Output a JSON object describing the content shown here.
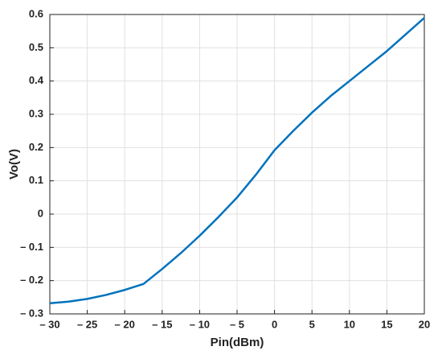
{
  "chart_data": {
    "type": "line",
    "xlabel": "Pin(dBm)",
    "ylabel": "Vo(V)",
    "x": [
      -30,
      -27.5,
      -25,
      -22.5,
      -20,
      -17.5,
      -15,
      -12.5,
      -10,
      -7.5,
      -5,
      -2.5,
      0,
      2.5,
      5,
      7.5,
      10,
      12.5,
      15,
      17.5,
      20
    ],
    "series": [
      {
        "name": "Vo",
        "color": "#0072bd",
        "values": [
          -0.268,
          -0.263,
          -0.255,
          -0.243,
          -0.228,
          -0.21,
          -0.165,
          -0.117,
          -0.065,
          -0.009,
          0.05,
          0.118,
          0.192,
          0.25,
          0.305,
          0.355,
          0.4,
          0.445,
          0.49,
          0.54,
          0.59
        ]
      }
    ],
    "xlim": [
      -30,
      20
    ],
    "ylim": [
      -0.3,
      0.6
    ],
    "xticks": [
      {
        "value": -30,
        "label": "– 30"
      },
      {
        "value": -25,
        "label": "– 25"
      },
      {
        "value": -20,
        "label": "– 20"
      },
      {
        "value": -15,
        "label": "– 15"
      },
      {
        "value": -10,
        "label": "– 10"
      },
      {
        "value": -5,
        "label": "– 5"
      },
      0,
      5,
      10,
      15,
      20
    ],
    "yticks": [
      {
        "value": -0.3,
        "label": "– 0.3"
      },
      {
        "value": -0.2,
        "label": "– 0.2"
      },
      {
        "value": -0.1,
        "label": "– 0.1"
      },
      0,
      0.1,
      0.2,
      0.3,
      0.4,
      0.5,
      0.6
    ],
    "grid": true
  }
}
